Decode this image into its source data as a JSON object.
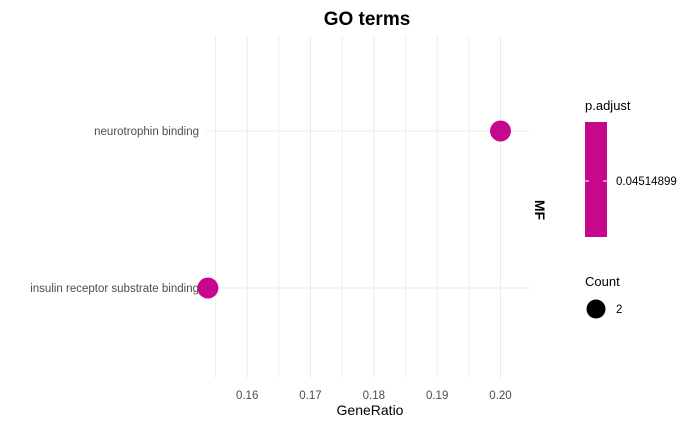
{
  "chart_data": {
    "type": "scatter",
    "title": "GO terms",
    "xlabel": "GeneRatio",
    "ylabel": "",
    "facet_label": "MF",
    "xlim": [
      0.1535,
      0.2045
    ],
    "xticks": [
      0.16,
      0.17,
      0.18,
      0.19,
      0.2
    ],
    "xtick_labels": [
      "0.16",
      "0.17",
      "0.18",
      "0.19",
      "0.20"
    ],
    "grid": true,
    "points": [
      {
        "term": "neurotrophin binding",
        "x": 0.2,
        "count": 2,
        "p_adjust": 0.04514899
      },
      {
        "term": "insulin receptor substrate binding",
        "x": 0.1538,
        "count": 2,
        "p_adjust": 0.04514899
      }
    ],
    "legend": {
      "placement": "right",
      "color_title": "p.adjust",
      "color_value_label": "0.04514899",
      "size_title": "Count",
      "size_value_label": "2"
    },
    "colors": {
      "point": "#c6088c",
      "grid": "#ebebeb",
      "size_key": "#000000"
    }
  }
}
